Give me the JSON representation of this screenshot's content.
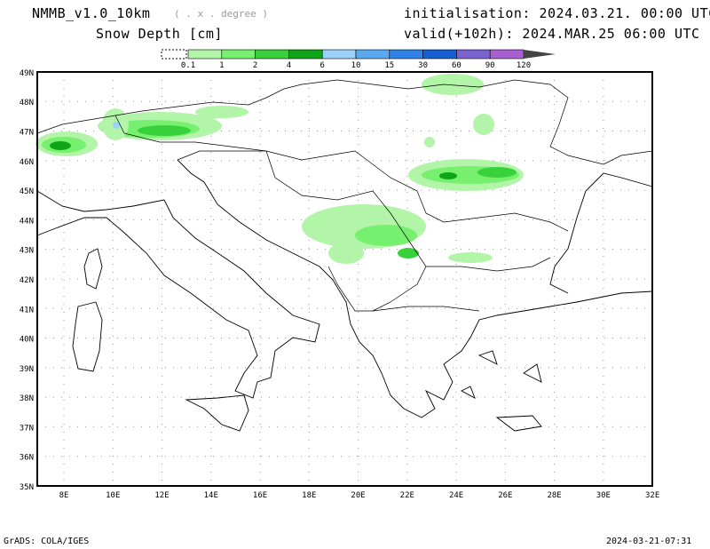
{
  "header": {
    "model": "NMMB_v1.0_10km",
    "resolution": "( . x . degree )",
    "variable": "Snow Depth [cm]",
    "initialisation": "initialisation: 2024.03.21.  00:00 UTC",
    "valid": "valid(+102h): 2024.MAR.25 06:00 UTC"
  },
  "colorbar": {
    "labels": [
      "0.1",
      "1",
      "2",
      "4",
      "6",
      "10",
      "15",
      "30",
      "60",
      "90",
      "120"
    ],
    "colors": [
      "#b3f5a8",
      "#78f06f",
      "#38d13c",
      "#10a518",
      "#9ad2fa",
      "#5aa8f0",
      "#2f82e8",
      "#1560d0",
      "#7a63d0",
      "#a860d0"
    ],
    "overflow_color": "#444444"
  },
  "map": {
    "lat_labels": [
      "49N",
      "48N",
      "47N",
      "46N",
      "45N",
      "44N",
      "43N",
      "42N",
      "41N",
      "40N",
      "39N",
      "38N",
      "37N",
      "36N",
      "35N"
    ],
    "lon_labels": [
      "8E",
      "10E",
      "12E",
      "14E",
      "16E",
      "18E",
      "20E",
      "22E",
      "24E",
      "26E",
      "28E",
      "30E",
      "32E"
    ],
    "snow_colors": {
      "light": "#b3f5a8",
      "mid": "#78f06f",
      "dark": "#38d13c",
      "darker": "#10a518",
      "blue": "#9ad2fa"
    }
  },
  "footer": {
    "left": "GrADS: COLA/IGES",
    "right": "2024-03-21-07:31"
  }
}
